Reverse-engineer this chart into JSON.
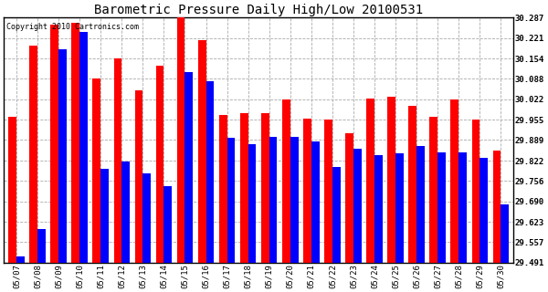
{
  "title": "Barometric Pressure Daily High/Low 20100531",
  "copyright": "Copyright 2010 Cartronics.com",
  "dates": [
    "05/07",
    "05/08",
    "05/09",
    "05/10",
    "05/11",
    "05/12",
    "05/13",
    "05/14",
    "05/15",
    "05/16",
    "05/17",
    "05/18",
    "05/19",
    "05/20",
    "05/21",
    "05/22",
    "05/23",
    "05/24",
    "05/25",
    "05/26",
    "05/27",
    "05/28",
    "05/29",
    "05/30"
  ],
  "high": [
    29.965,
    30.195,
    30.265,
    30.27,
    30.09,
    30.155,
    30.05,
    30.13,
    30.29,
    30.215,
    29.97,
    29.975,
    29.975,
    30.02,
    29.96,
    29.955,
    29.91,
    30.025,
    30.03,
    30.0,
    29.965,
    30.02,
    29.955,
    29.855
  ],
  "low": [
    29.51,
    29.6,
    30.185,
    30.24,
    29.795,
    29.82,
    29.78,
    29.74,
    30.11,
    30.08,
    29.895,
    29.875,
    29.9,
    29.9,
    29.885,
    29.8,
    29.86,
    29.84,
    29.845,
    29.87,
    29.85,
    29.848,
    29.83,
    29.68
  ],
  "high_color": "#FF0000",
  "low_color": "#0000FF",
  "background_color": "#FFFFFF",
  "grid_color": "#AAAAAA",
  "ymin": 29.491,
  "ymax": 30.287,
  "yticks": [
    29.491,
    29.557,
    29.623,
    29.69,
    29.756,
    29.822,
    29.889,
    29.955,
    30.022,
    30.088,
    30.154,
    30.221,
    30.287
  ],
  "bar_width": 0.38,
  "title_fontsize": 10,
  "tick_fontsize": 6.5,
  "copyright_fontsize": 6
}
